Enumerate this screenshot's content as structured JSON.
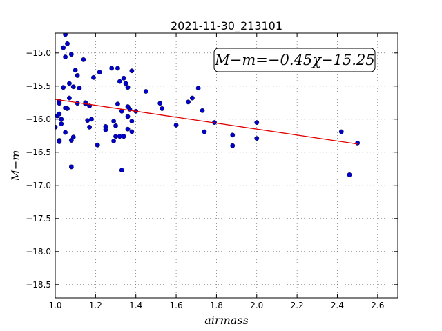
{
  "chart_data": {
    "type": "scatter",
    "title": "2021-11-30_213101",
    "xlabel": "airmass",
    "ylabel": "M−m",
    "annotation": "M−m=−0.45χ−15.25",
    "xlim": [
      1.0,
      2.7
    ],
    "ylim": [
      -18.7,
      -14.7
    ],
    "y_inverted": true,
    "grid": true,
    "xticks": [
      "1.0",
      "1.2",
      "1.4",
      "1.6",
      "1.8",
      "2.0",
      "2.2",
      "2.4",
      "2.6"
    ],
    "yticks": [
      "−15.0",
      "−15.5",
      "−16.0",
      "−16.5",
      "−17.0",
      "−17.5",
      "−18.0",
      "−18.5"
    ],
    "fit_line": {
      "slope": -0.45,
      "intercept": -15.25,
      "x_range": [
        1.0,
        2.5
      ],
      "color": "#e00000"
    },
    "point_color": "#0000cc",
    "points": [
      [
        1.0,
        -16.12
      ],
      [
        1.01,
        -15.95
      ],
      [
        1.02,
        -15.92
      ],
      [
        1.02,
        -15.73
      ],
      [
        1.02,
        -15.76
      ],
      [
        1.02,
        -16.32
      ],
      [
        1.02,
        -16.34
      ],
      [
        1.03,
        -16.0
      ],
      [
        1.03,
        -16.07
      ],
      [
        1.04,
        -15.52
      ],
      [
        1.04,
        -14.92
      ],
      [
        1.05,
        -14.72
      ],
      [
        1.05,
        -15.06
      ],
      [
        1.05,
        -16.2
      ],
      [
        1.05,
        -15.83
      ],
      [
        1.06,
        -14.86
      ],
      [
        1.06,
        -15.84
      ],
      [
        1.07,
        -15.68
      ],
      [
        1.07,
        -15.46
      ],
      [
        1.08,
        -16.72
      ],
      [
        1.08,
        -15.02
      ],
      [
        1.08,
        -16.32
      ],
      [
        1.09,
        -16.27
      ],
      [
        1.09,
        -15.51
      ],
      [
        1.1,
        -15.26
      ],
      [
        1.11,
        -15.76
      ],
      [
        1.11,
        -15.34
      ],
      [
        1.12,
        -15.53
      ],
      [
        1.14,
        -15.1
      ],
      [
        1.15,
        -15.77
      ],
      [
        1.15,
        -15.75
      ],
      [
        1.16,
        -16.02
      ],
      [
        1.17,
        -16.12
      ],
      [
        1.17,
        -15.8
      ],
      [
        1.18,
        -16.0
      ],
      [
        1.19,
        -15.37
      ],
      [
        1.21,
        -16.39
      ],
      [
        1.22,
        -15.29
      ],
      [
        1.25,
        -16.11
      ],
      [
        1.25,
        -16.16
      ],
      [
        1.28,
        -15.23
      ],
      [
        1.29,
        -16.33
      ],
      [
        1.29,
        -16.03
      ],
      [
        1.3,
        -16.26
      ],
      [
        1.3,
        -16.1
      ],
      [
        1.31,
        -15.77
      ],
      [
        1.31,
        -15.23
      ],
      [
        1.32,
        -16.26
      ],
      [
        1.32,
        -15.43
      ],
      [
        1.33,
        -16.77
      ],
      [
        1.33,
        -15.88
      ],
      [
        1.34,
        -16.26
      ],
      [
        1.34,
        -15.38
      ],
      [
        1.35,
        -15.46
      ],
      [
        1.36,
        -15.52
      ],
      [
        1.36,
        -16.15
      ],
      [
        1.36,
        -15.81
      ],
      [
        1.36,
        -15.96
      ],
      [
        1.37,
        -15.85
      ],
      [
        1.38,
        -15.27
      ],
      [
        1.38,
        -16.03
      ],
      [
        1.38,
        -16.19
      ],
      [
        1.4,
        -15.88
      ],
      [
        1.45,
        -15.58
      ],
      [
        1.52,
        -15.76
      ],
      [
        1.53,
        -15.84
      ],
      [
        1.6,
        -16.09
      ],
      [
        1.66,
        -15.74
      ],
      [
        1.68,
        -15.68
      ],
      [
        1.71,
        -15.53
      ],
      [
        1.73,
        -15.87
      ],
      [
        1.74,
        -16.19
      ],
      [
        1.79,
        -16.05
      ],
      [
        1.88,
        -16.24
      ],
      [
        1.88,
        -16.4
      ],
      [
        2.0,
        -16.05
      ],
      [
        2.0,
        -16.29
      ],
      [
        2.42,
        -16.19
      ],
      [
        2.46,
        -16.84
      ],
      [
        2.5,
        -16.36
      ]
    ]
  }
}
